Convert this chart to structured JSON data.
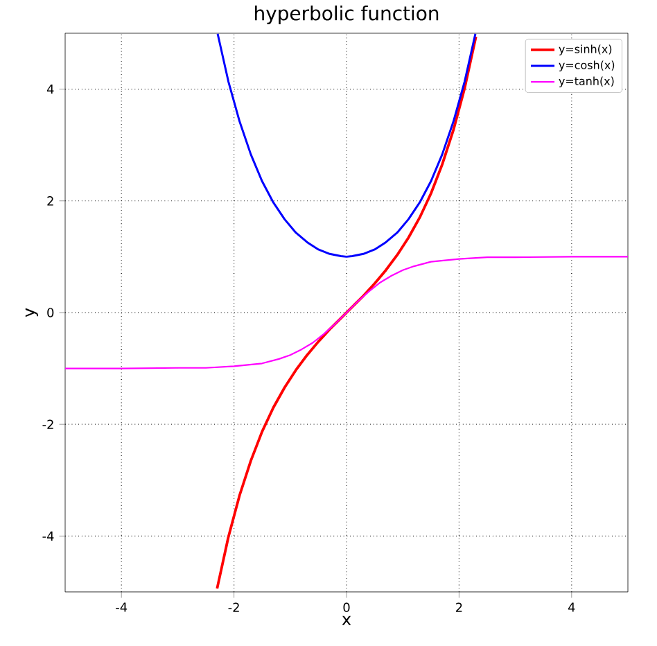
{
  "chart_data": {
    "type": "line",
    "title": "hyperbolic function",
    "xlabel": "x",
    "ylabel": "y",
    "xlim": [
      -5,
      5
    ],
    "ylim": [
      -5,
      5
    ],
    "xticks": [
      -4,
      -2,
      0,
      2,
      4
    ],
    "yticks": [
      -4,
      -2,
      0,
      2,
      4
    ],
    "grid": true,
    "legend": "top right",
    "marker": "none",
    "line_style": "solid",
    "series": [
      {
        "name": "y=sinh(x)",
        "color": "#ff0000",
        "x": [
          -2.3,
          -2.1,
          -1.9,
          -1.7,
          -1.5,
          -1.3,
          -1.1,
          -0.9,
          -0.7,
          -0.5,
          -0.3,
          -0.1,
          0,
          0.1,
          0.3,
          0.5,
          0.7,
          0.9,
          1.1,
          1.3,
          1.5,
          1.7,
          1.9,
          2.1,
          2.3
        ],
        "values": [
          -4.94,
          -4.02,
          -3.27,
          -2.65,
          -2.13,
          -1.7,
          -1.34,
          -1.03,
          -0.76,
          -0.52,
          -0.3,
          -0.1,
          0,
          0.1,
          0.3,
          0.52,
          0.76,
          1.03,
          1.34,
          1.7,
          2.13,
          2.65,
          3.27,
          4.02,
          4.94
        ]
      },
      {
        "name": "y=cosh(x)",
        "color": "#0000ff",
        "x": [
          -2.29,
          -2.1,
          -1.9,
          -1.7,
          -1.5,
          -1.3,
          -1.1,
          -0.9,
          -0.7,
          -0.5,
          -0.3,
          -0.1,
          0,
          0.1,
          0.3,
          0.5,
          0.7,
          0.9,
          1.1,
          1.3,
          1.5,
          1.7,
          1.9,
          2.1,
          2.29
        ],
        "values": [
          4.99,
          4.14,
          3.42,
          2.83,
          2.35,
          1.97,
          1.67,
          1.43,
          1.26,
          1.13,
          1.05,
          1.01,
          1,
          1.01,
          1.05,
          1.13,
          1.26,
          1.43,
          1.67,
          1.97,
          2.35,
          2.83,
          3.42,
          4.14,
          4.99
        ]
      },
      {
        "name": "y=tanh(x)",
        "color": "#ff00ff",
        "x": [
          -5,
          -4,
          -3,
          -2.5,
          -2,
          -1.5,
          -1.2,
          -1,
          -0.8,
          -0.6,
          -0.4,
          -0.2,
          0,
          0.2,
          0.4,
          0.6,
          0.8,
          1,
          1.2,
          1.5,
          2,
          2.5,
          3,
          4,
          5
        ],
        "values": [
          -1,
          -1,
          -0.99,
          -0.99,
          -0.96,
          -0.91,
          -0.83,
          -0.76,
          -0.66,
          -0.54,
          -0.38,
          -0.2,
          0,
          0.2,
          0.38,
          0.54,
          0.66,
          0.76,
          0.83,
          0.91,
          0.96,
          0.99,
          0.99,
          1,
          1
        ]
      }
    ]
  }
}
